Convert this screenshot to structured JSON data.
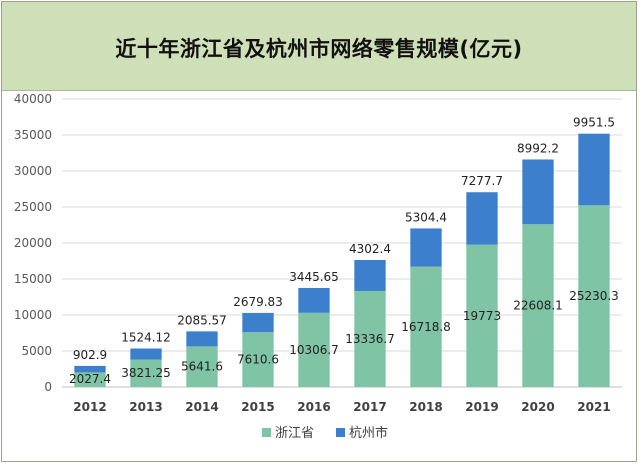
{
  "chart_data": {
    "type": "bar",
    "stacked": true,
    "title": "近十年浙江省及杭州市网络零售规模(亿元)",
    "categories": [
      "2012",
      "2013",
      "2014",
      "2015",
      "2016",
      "2017",
      "2018",
      "2019",
      "2020",
      "2021"
    ],
    "series": [
      {
        "name": "浙江省",
        "color": "#7fc4a4",
        "values": [
          2027.4,
          3821.25,
          5641.6,
          7610.6,
          10306.7,
          13336.7,
          16718.8,
          19773,
          22608.1,
          25230.3
        ],
        "labels": [
          "2027.4",
          "3821.25",
          "5641.6",
          "7610.6",
          "10306.7",
          "13336.7",
          "16718.8",
          "19773",
          "22608.1",
          "25230.3"
        ]
      },
      {
        "name": "杭州市",
        "color": "#3b7fcd",
        "values": [
          902.9,
          1524.12,
          2085.57,
          2679.83,
          3445.65,
          4302.4,
          5304.4,
          7277.7,
          8992.2,
          9951.5
        ],
        "labels": [
          "902.9",
          "1524.12",
          "2085.57",
          "2679.83",
          "3445.65",
          "4302.4",
          "5304.4",
          "7277.7",
          "8992.2",
          "9951.5"
        ]
      }
    ],
    "ylim": [
      0,
      40000
    ],
    "yticks": [
      "0",
      "5000",
      "10000",
      "15000",
      "20000",
      "25000",
      "30000",
      "35000",
      "40000"
    ],
    "grid": true,
    "legend_position": "bottom"
  }
}
